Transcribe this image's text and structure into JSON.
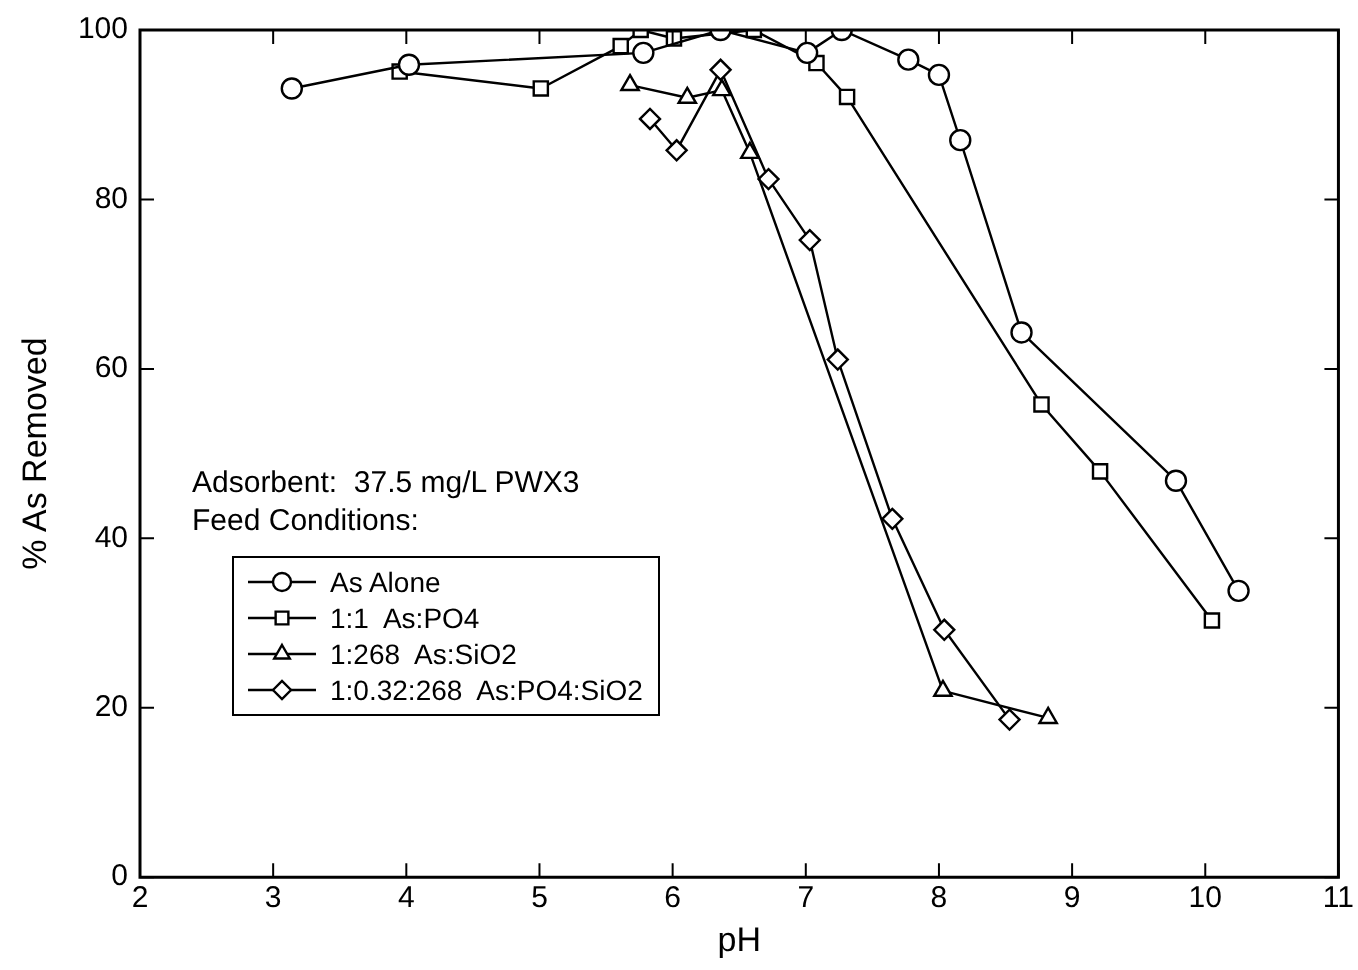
{
  "chart_data": {
    "type": "line",
    "xlabel": "pH",
    "ylabel": "% As Removed",
    "xlim": [
      2,
      11
    ],
    "xticks": [
      2,
      3,
      4,
      5,
      6,
      7,
      8,
      9,
      10,
      11
    ],
    "ylim": [
      0,
      100
    ],
    "yticks": [
      0,
      20,
      40,
      60,
      80,
      100
    ],
    "grid": false,
    "legend": "left",
    "line_style": "solid",
    "annotations": [
      "Adsorbent:  37.5 mg/L PWX3",
      "Feed Conditions:"
    ],
    "series": [
      {
        "name": "As Alone",
        "color": "#000000",
        "marker": "circle",
        "x": [
          3.14,
          4.02,
          5.78,
          6.36,
          7.01,
          7.27,
          7.77,
          8.0,
          8.16,
          8.62,
          9.78,
          10.25
        ],
        "values": [
          93.1,
          95.9,
          97.3,
          100,
          97.3,
          100,
          96.5,
          94.7,
          87.0,
          64.3,
          46.8,
          33.8
        ]
      },
      {
        "name": "1:1  As:PO4",
        "color": "#000000",
        "marker": "square",
        "x": [
          3.95,
          5.01,
          5.61,
          5.76,
          6.01,
          6.61,
          7.08,
          7.31,
          8.77,
          9.21,
          10.05
        ],
        "values": [
          95.1,
          93.1,
          98.1,
          100,
          99.0,
          100,
          96.1,
          92.1,
          55.8,
          47.9,
          30.3
        ]
      },
      {
        "name": "1:268  As:SiO2",
        "color": "#000000",
        "marker": "triangle",
        "x": [
          5.68,
          6.11,
          6.37,
          6.58,
          8.03,
          8.82
        ],
        "values": [
          93.5,
          92.0,
          92.9,
          85.5,
          22.0,
          18.8
        ]
      },
      {
        "name": "1:0.32:268  As:PO4:SiO2",
        "color": "#000000",
        "marker": "diamond",
        "x": [
          5.83,
          6.03,
          6.36,
          6.72,
          7.03,
          7.24,
          7.65,
          8.04,
          8.53
        ],
        "values": [
          89.5,
          85.8,
          95.3,
          82.4,
          75.2,
          61.1,
          42.3,
          29.2,
          18.6
        ]
      }
    ]
  }
}
